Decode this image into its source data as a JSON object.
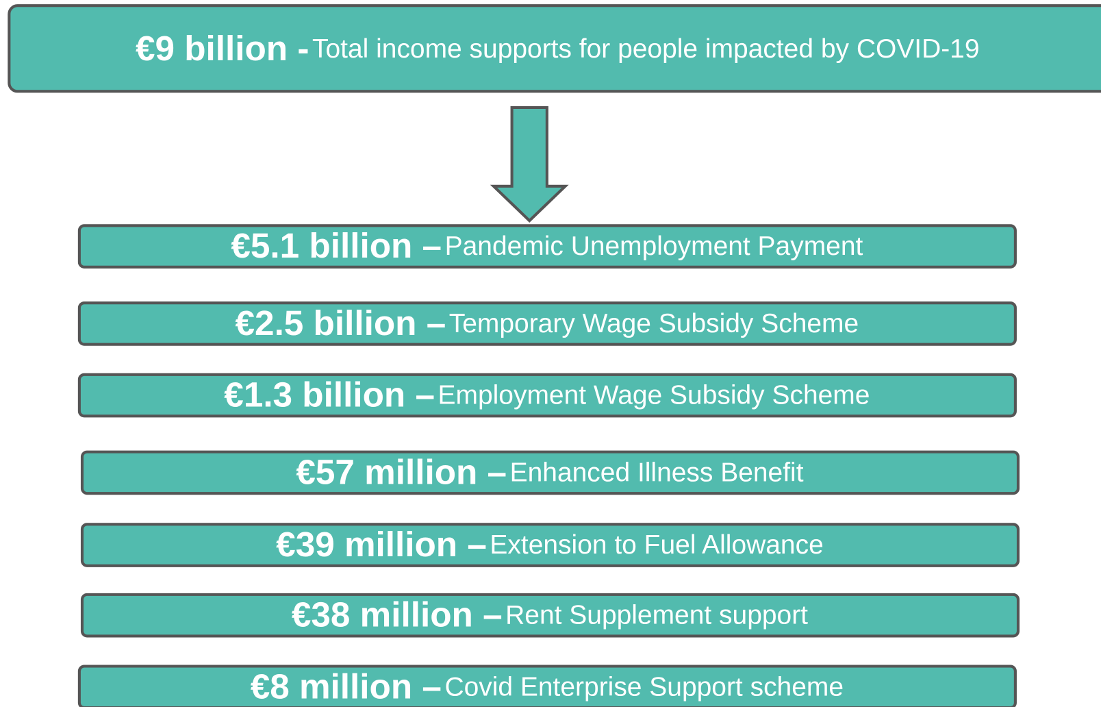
{
  "header": {
    "amount": "€9 billion -",
    "label": "Total income supports for people impacted by COVID-19"
  },
  "items": [
    {
      "amount": "€5.1 billion –",
      "label": "Pandemic Unemployment Payment"
    },
    {
      "amount": "€2.5 billion –",
      "label": "Temporary Wage Subsidy Scheme"
    },
    {
      "amount": "€1.3 billion –",
      "label": "Employment Wage Subsidy Scheme"
    },
    {
      "amount": "€57 million –",
      "label": "Enhanced Illness Benefit"
    },
    {
      "amount": "€39 million –",
      "label": "Extension to Fuel Allowance"
    },
    {
      "amount": "€38 million –",
      "label": "Rent Supplement support"
    },
    {
      "amount": "€8 million –",
      "label": "Covid Enterprise Support scheme"
    }
  ]
}
